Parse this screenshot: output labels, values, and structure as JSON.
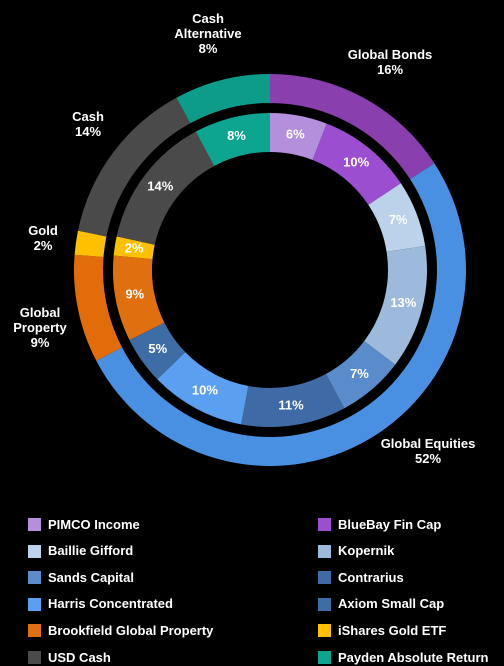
{
  "chart_data": {
    "type": "donut",
    "outer": {
      "categories": [
        "Global Bonds",
        "Global Equities",
        "Global Property",
        "Gold",
        "Cash",
        "Cash Alternative"
      ],
      "values": [
        16,
        52,
        9,
        2,
        14,
        8
      ],
      "value_labels": [
        "16%",
        "52%",
        "9%",
        "2%",
        "14%",
        "8%"
      ],
      "colors": [
        "#8a3fae",
        "#4a90e2",
        "#e36c0a",
        "#ffc000",
        "#4a4a4a",
        "#0d9c8a"
      ]
    },
    "inner": {
      "categories": [
        "PIMCO Income",
        "BlueBay Fin Cap",
        "Baillie Gifford",
        "Kopernik",
        "Sands Capital",
        "Contrarius",
        "Harris Concentrated",
        "Axiom Small Cap",
        "Brookfield Global Property",
        "iShares Gold ETF",
        "USD Cash",
        "Payden Absolute Return"
      ],
      "values": [
        6,
        10,
        7,
        13,
        7,
        11,
        10,
        5,
        9,
        2,
        14,
        8
      ],
      "value_labels": [
        "6%",
        "10%",
        "7%",
        "13%",
        "7%",
        "11%",
        "10%",
        "5%",
        "9%",
        "2%",
        "14%",
        "8%"
      ],
      "colors": [
        "#b48fdc",
        "#9b4fd0",
        "#bcd2ea",
        "#9db9dc",
        "#5a8ccb",
        "#3f6aa6",
        "#5ba0f0",
        "#3e6da6",
        "#e06f10",
        "#ffc000",
        "#4a4a4a",
        "#0ea590"
      ]
    }
  }
}
